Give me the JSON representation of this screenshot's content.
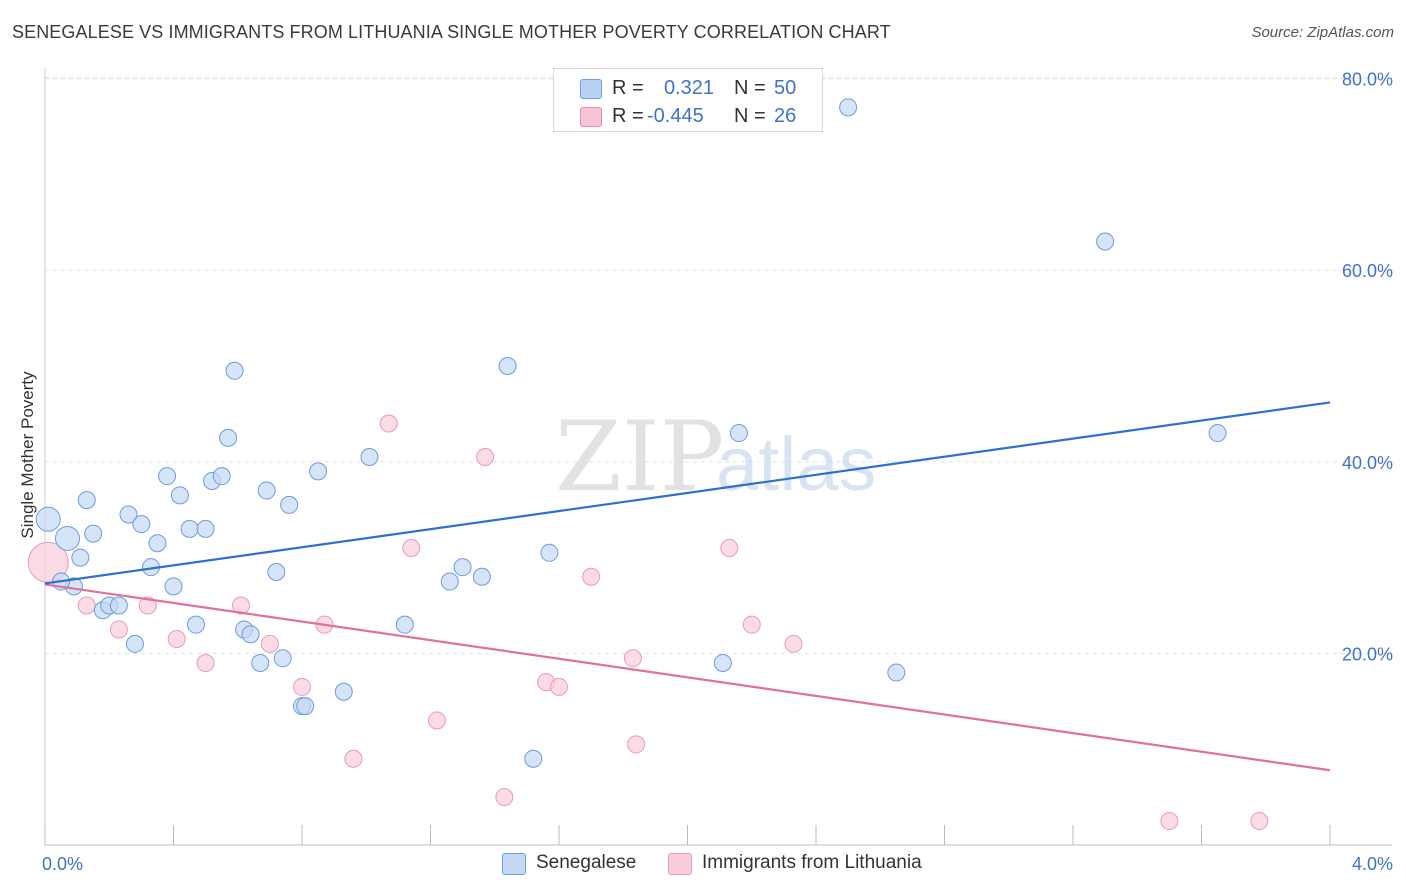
{
  "title": "SENEGALESE VS IMMIGRANTS FROM LITHUANIA SINGLE MOTHER POVERTY CORRELATION CHART",
  "source": "Source: ZipAtlas.com",
  "watermark": {
    "zip": "ZIP",
    "atlas": "atlas"
  },
  "legend": {
    "r_label": "R =",
    "n_label": "N =",
    "rows": [
      {
        "r": "0.321",
        "n": "50",
        "fill": "#b8d0f2",
        "stroke": "#6f9ee0"
      },
      {
        "r": "-0.445",
        "n": "26",
        "fill": "#f8c4d4",
        "stroke": "#e88fab"
      }
    ]
  },
  "bottom_legend": [
    "Senegalese",
    "Immigrants from Lithuania"
  ],
  "colors": {
    "blue_fill": "#c5d9f4",
    "blue_stroke": "#6d9be0",
    "blue_line": "#2f6fd0",
    "pink_fill": "#f9cddb",
    "pink_stroke": "#ea9ab4",
    "pink_line": "#e2709a",
    "tick_label": "#3f73c9",
    "grid": "#e2e2e2"
  },
  "chart_data": {
    "type": "scatter",
    "title": "SENEGALESE VS IMMIGRANTS FROM LITHUANIA SINGLE MOTHER POVERTY CORRELATION CHART",
    "xlabel": "",
    "ylabel": "Single Mother Poverty",
    "xlim": [
      0,
      4.0
    ],
    "ylim": [
      0,
      84
    ],
    "x_tick_labels": [
      "0.0%",
      "4.0%"
    ],
    "y_ticks": [
      20,
      40,
      60,
      80
    ],
    "y_tick_labels": [
      "20.0%",
      "40.0%",
      "60.0%",
      "80.0%"
    ],
    "grid": true,
    "series": [
      {
        "name": "Senegalese",
        "r": 0.321,
        "n": 50,
        "trend": {
          "x": [
            0,
            4.0
          ],
          "y": [
            27.3,
            46.2
          ]
        },
        "points": [
          {
            "x": 0.01,
            "y": 34.0,
            "big": true
          },
          {
            "x": 0.07,
            "y": 32.0,
            "big": true
          },
          {
            "x": 0.13,
            "y": 36.0
          },
          {
            "x": 0.15,
            "y": 32.5
          },
          {
            "x": 0.09,
            "y": 27.0
          },
          {
            "x": 0.11,
            "y": 30.0
          },
          {
            "x": 0.18,
            "y": 24.5
          },
          {
            "x": 0.2,
            "y": 25.0
          },
          {
            "x": 0.23,
            "y": 25.0
          },
          {
            "x": 0.26,
            "y": 34.5
          },
          {
            "x": 0.28,
            "y": 21.0
          },
          {
            "x": 0.3,
            "y": 33.5
          },
          {
            "x": 0.33,
            "y": 29.0
          },
          {
            "x": 0.35,
            "y": 31.5
          },
          {
            "x": 0.38,
            "y": 38.5
          },
          {
            "x": 0.4,
            "y": 27.0
          },
          {
            "x": 0.42,
            "y": 36.5
          },
          {
            "x": 0.45,
            "y": 33.0
          },
          {
            "x": 0.47,
            "y": 23.0
          },
          {
            "x": 0.5,
            "y": 33.0
          },
          {
            "x": 0.52,
            "y": 38.0
          },
          {
            "x": 0.55,
            "y": 38.5
          },
          {
            "x": 0.57,
            "y": 42.5
          },
          {
            "x": 0.59,
            "y": 49.5
          },
          {
            "x": 0.62,
            "y": 22.5
          },
          {
            "x": 0.64,
            "y": 22.0
          },
          {
            "x": 0.67,
            "y": 19.0
          },
          {
            "x": 0.69,
            "y": 37.0
          },
          {
            "x": 0.72,
            "y": 28.5
          },
          {
            "x": 0.74,
            "y": 19.5
          },
          {
            "x": 0.76,
            "y": 35.5
          },
          {
            "x": 0.8,
            "y": 14.5
          },
          {
            "x": 0.81,
            "y": 14.5
          },
          {
            "x": 0.85,
            "y": 39.0
          },
          {
            "x": 0.93,
            "y": 16.0
          },
          {
            "x": 1.01,
            "y": 40.5
          },
          {
            "x": 1.12,
            "y": 23.0
          },
          {
            "x": 1.26,
            "y": 27.5
          },
          {
            "x": 1.3,
            "y": 29.0
          },
          {
            "x": 1.36,
            "y": 28.0
          },
          {
            "x": 1.44,
            "y": 50.0
          },
          {
            "x": 1.52,
            "y": 9.0
          },
          {
            "x": 1.57,
            "y": 30.5
          },
          {
            "x": 2.11,
            "y": 19.0
          },
          {
            "x": 2.16,
            "y": 43.0
          },
          {
            "x": 2.5,
            "y": 77.0
          },
          {
            "x": 2.65,
            "y": 18.0
          },
          {
            "x": 3.3,
            "y": 63.0
          },
          {
            "x": 3.65,
            "y": 43.0
          },
          {
            "x": 0.05,
            "y": 27.5
          }
        ]
      },
      {
        "name": "Immigrants from Lithuania",
        "r": -0.445,
        "n": 26,
        "trend": {
          "x": [
            0,
            4.0
          ],
          "y": [
            27.2,
            7.8
          ]
        },
        "points": [
          {
            "x": 0.01,
            "y": 29.5,
            "huge": true
          },
          {
            "x": 0.13,
            "y": 25.0
          },
          {
            "x": 0.23,
            "y": 22.5
          },
          {
            "x": 0.32,
            "y": 25.0
          },
          {
            "x": 0.41,
            "y": 21.5
          },
          {
            "x": 0.5,
            "y": 19.0
          },
          {
            "x": 0.61,
            "y": 25.0
          },
          {
            "x": 0.7,
            "y": 21.0
          },
          {
            "x": 0.8,
            "y": 16.5
          },
          {
            "x": 0.87,
            "y": 23.0
          },
          {
            "x": 0.96,
            "y": 9.0
          },
          {
            "x": 1.07,
            "y": 44.0
          },
          {
            "x": 1.14,
            "y": 31.0
          },
          {
            "x": 1.22,
            "y": 13.0
          },
          {
            "x": 1.37,
            "y": 40.5
          },
          {
            "x": 1.43,
            "y": 5.0
          },
          {
            "x": 1.56,
            "y": 17.0
          },
          {
            "x": 1.6,
            "y": 16.5
          },
          {
            "x": 1.7,
            "y": 28.0
          },
          {
            "x": 1.83,
            "y": 19.5
          },
          {
            "x": 1.84,
            "y": 10.5
          },
          {
            "x": 2.13,
            "y": 31.0
          },
          {
            "x": 2.2,
            "y": 23.0
          },
          {
            "x": 2.33,
            "y": 21.0
          },
          {
            "x": 3.5,
            "y": 2.5
          },
          {
            "x": 3.78,
            "y": 2.5
          }
        ]
      }
    ]
  }
}
